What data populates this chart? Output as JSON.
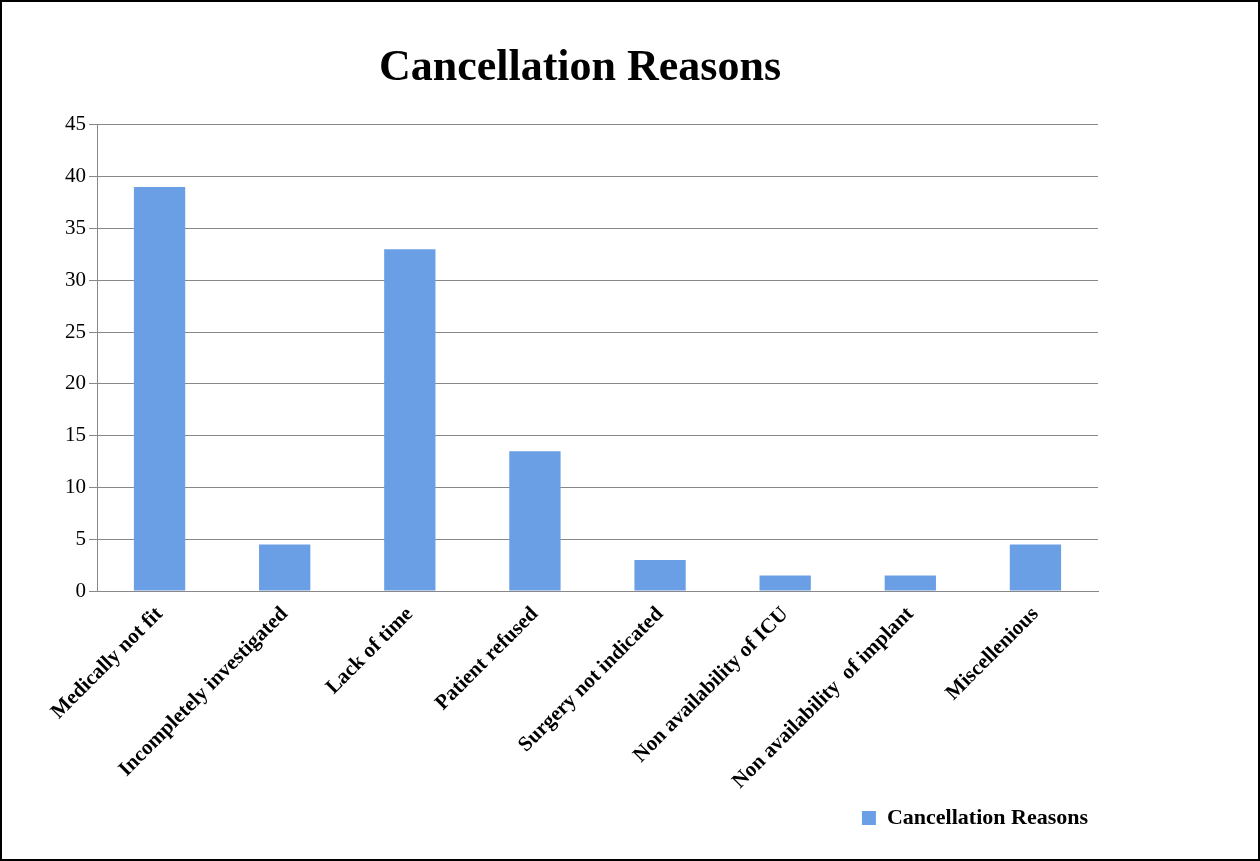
{
  "chart_data": {
    "type": "bar",
    "title": "Cancellation Reasons",
    "categories": [
      "Medically not fit",
      "Incompletely investigated",
      "Lack of time",
      "Patient refused",
      "Surgery not indicated",
      "Non availability of ICU",
      "Non availability  of implant",
      "Miscellenious"
    ],
    "series": [
      {
        "name": "Cancellation Reasons",
        "color": "#6a9fe6",
        "values": [
          39,
          4.5,
          33,
          13.5,
          3,
          1.5,
          1.5,
          4.5
        ]
      }
    ],
    "ylim": [
      0,
      45
    ],
    "yticks": [
      0,
      5,
      10,
      15,
      20,
      25,
      30,
      35,
      40,
      45
    ],
    "grid": "y",
    "legend": "bottom right"
  }
}
